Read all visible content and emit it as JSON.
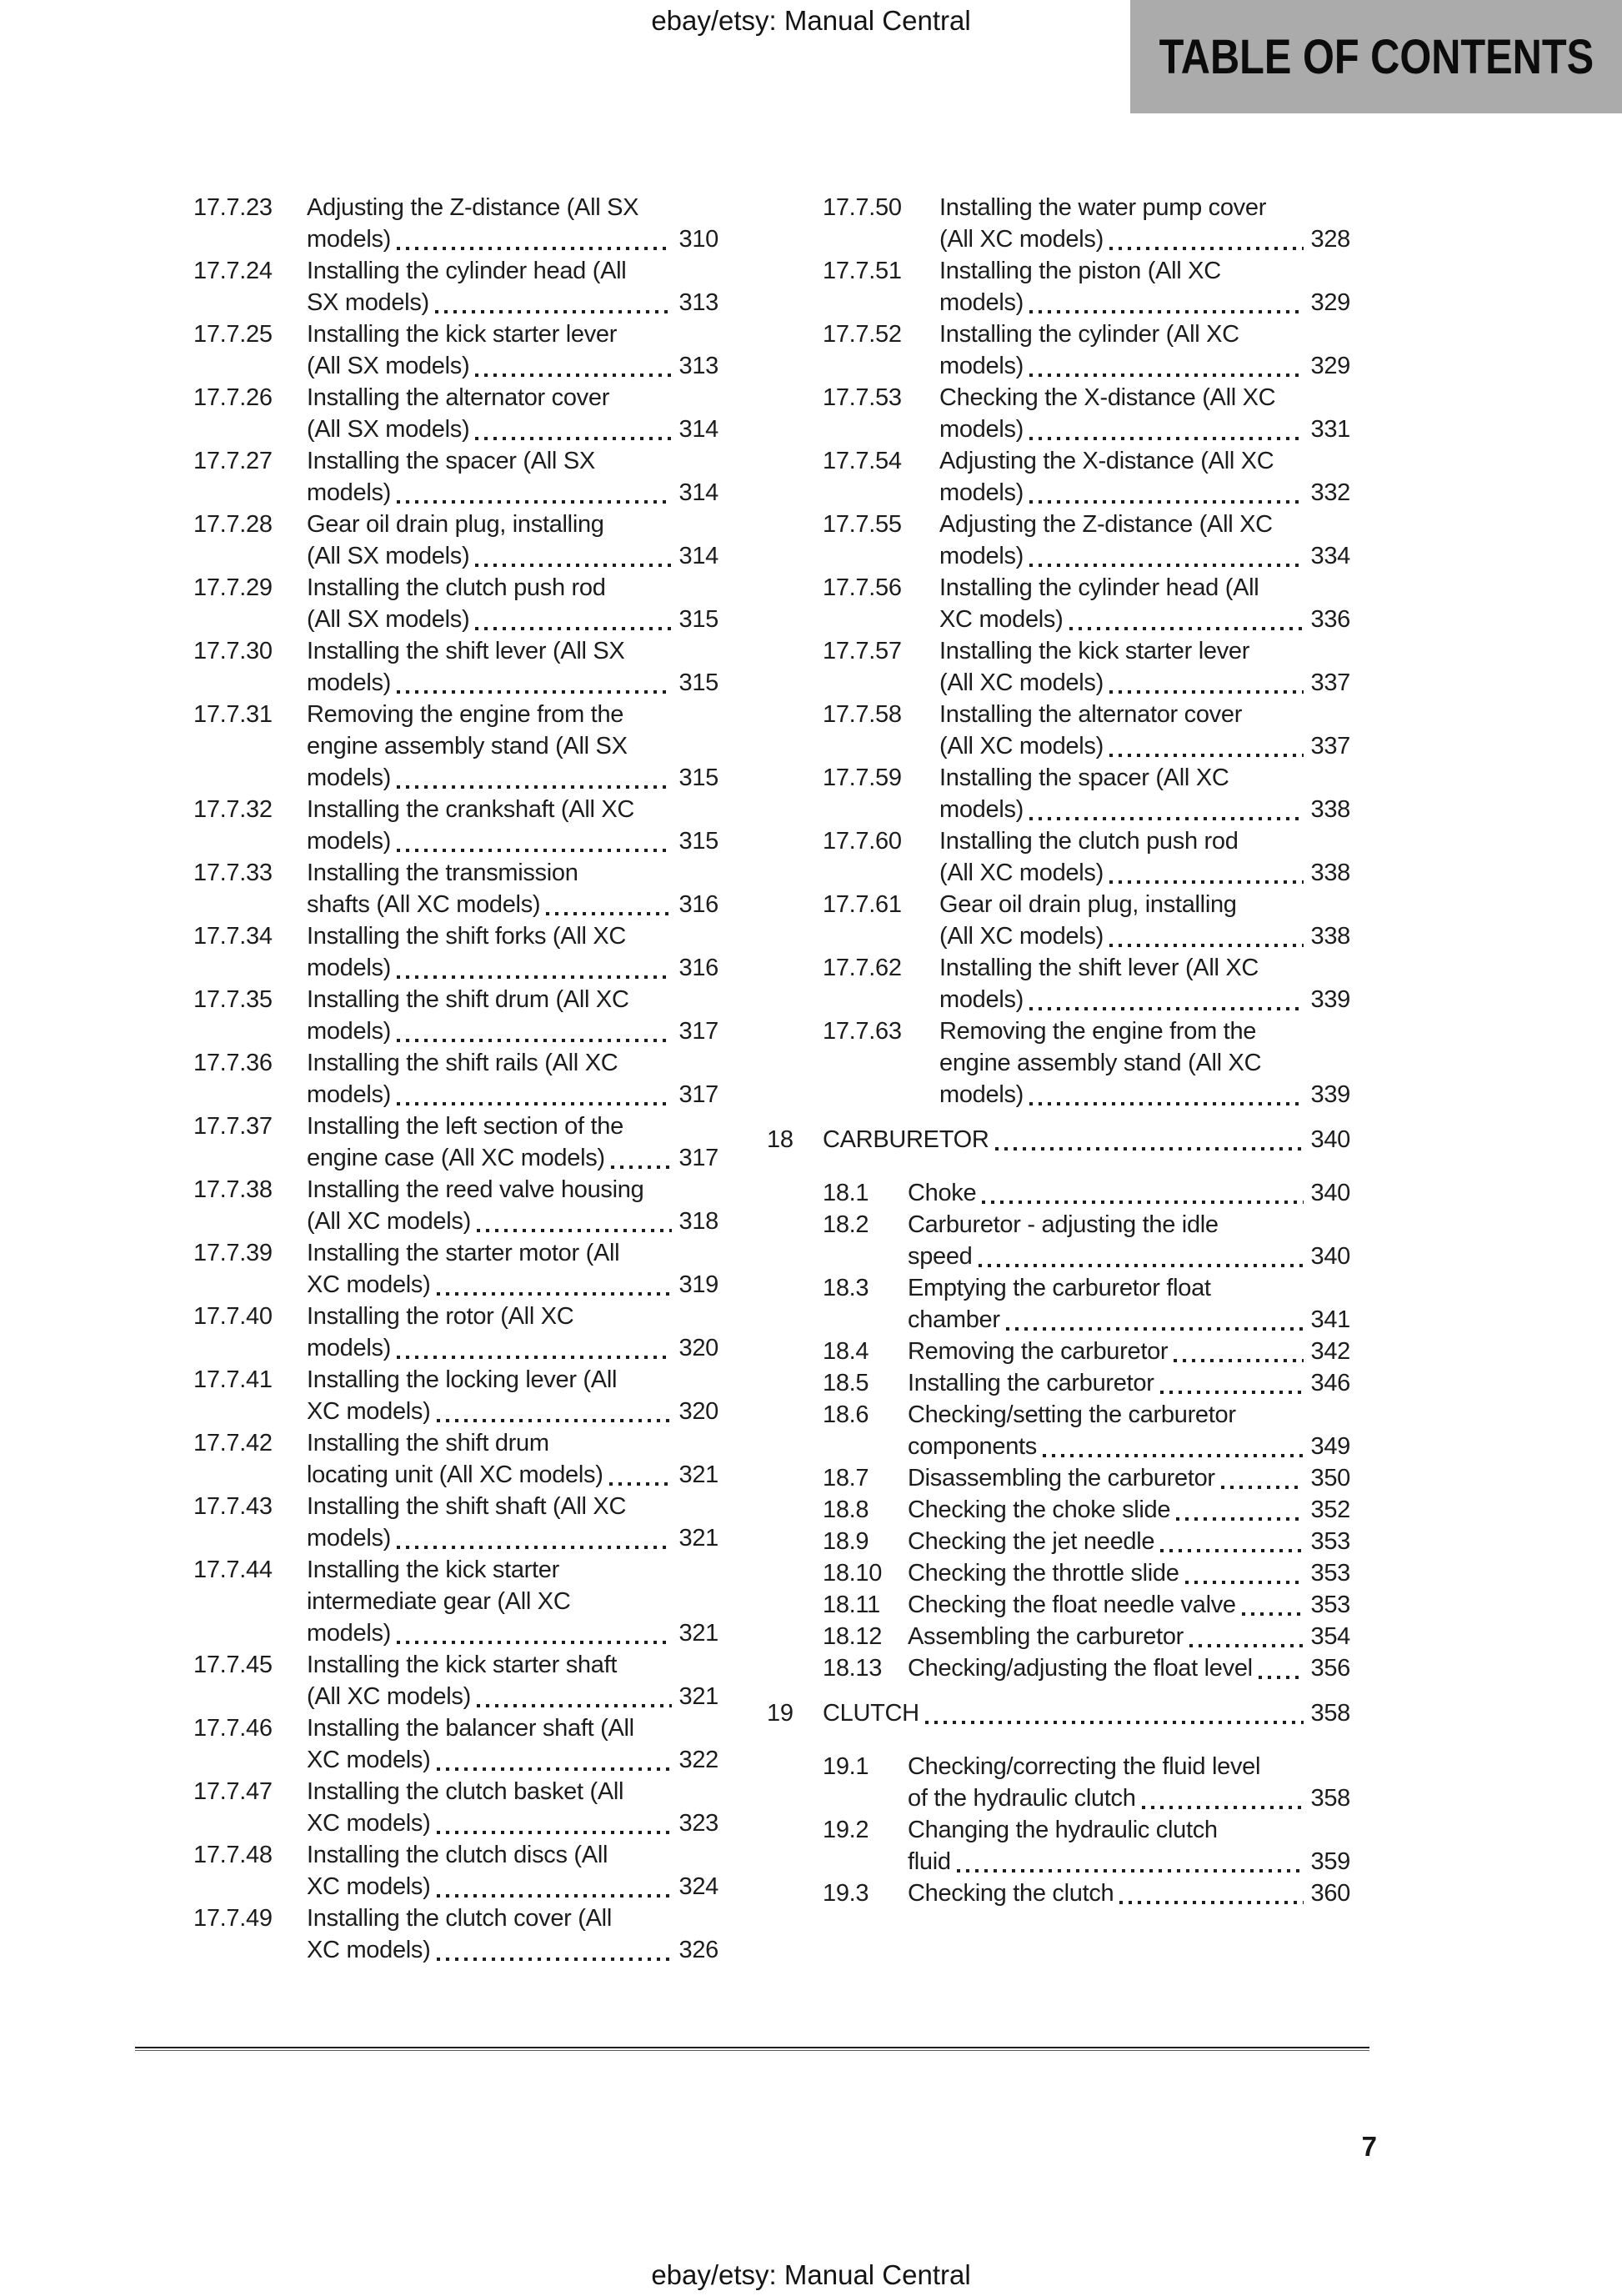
{
  "page": {
    "header_watermark": "ebay/etsy: Manual Central",
    "footer_watermark": "ebay/etsy: Manual Central",
    "title": "TABLE OF CONTENTS",
    "page_number": "7",
    "colors": {
      "title_box_bg": "#ababab",
      "text": "#1c1c1c",
      "leader_dots": "#1e1e1e"
    }
  },
  "toc": {
    "left_column": [
      {
        "num": "17.7.23",
        "lines": [
          "Adjusting the Z-distance (All SX",
          "models)"
        ],
        "page": "310"
      },
      {
        "num": "17.7.24",
        "lines": [
          "Installing the cylinder head (All",
          "SX models)"
        ],
        "page": "313"
      },
      {
        "num": "17.7.25",
        "lines": [
          "Installing the kick starter lever",
          "(All SX models)"
        ],
        "page": "313"
      },
      {
        "num": "17.7.26",
        "lines": [
          "Installing the alternator cover",
          "(All SX models)"
        ],
        "page": "314"
      },
      {
        "num": "17.7.27",
        "lines": [
          "Installing the spacer (All SX",
          "models)"
        ],
        "page": "314"
      },
      {
        "num": "17.7.28",
        "lines": [
          "Gear oil drain plug, installing",
          "(All SX models)"
        ],
        "page": "314"
      },
      {
        "num": "17.7.29",
        "lines": [
          "Installing the clutch push rod",
          "(All SX models)"
        ],
        "page": "315"
      },
      {
        "num": "17.7.30",
        "lines": [
          "Installing the shift lever (All SX",
          "models)"
        ],
        "page": "315"
      },
      {
        "num": "17.7.31",
        "lines": [
          "Removing the engine from the",
          "engine assembly stand (All SX",
          "models)"
        ],
        "page": "315"
      },
      {
        "num": "17.7.32",
        "lines": [
          "Installing the crankshaft (All XC",
          "models)"
        ],
        "page": "315"
      },
      {
        "num": "17.7.33",
        "lines": [
          "Installing the transmission",
          "shafts (All XC models)"
        ],
        "page": "316"
      },
      {
        "num": "17.7.34",
        "lines": [
          "Installing the shift forks (All XC",
          "models)"
        ],
        "page": "316"
      },
      {
        "num": "17.7.35",
        "lines": [
          "Installing the shift drum (All XC",
          "models)"
        ],
        "page": "317"
      },
      {
        "num": "17.7.36",
        "lines": [
          "Installing the shift rails (All XC",
          "models)"
        ],
        "page": "317"
      },
      {
        "num": "17.7.37",
        "lines": [
          "Installing the left section of the",
          "engine case (All XC models)"
        ],
        "page": "317"
      },
      {
        "num": "17.7.38",
        "lines": [
          "Installing the reed valve housing",
          "(All XC models)"
        ],
        "page": "318"
      },
      {
        "num": "17.7.39",
        "lines": [
          "Installing the starter motor (All",
          "XC models)"
        ],
        "page": "319"
      },
      {
        "num": "17.7.40",
        "lines": [
          "Installing the rotor (All XC",
          "models)"
        ],
        "page": "320"
      },
      {
        "num": "17.7.41",
        "lines": [
          "Installing the locking lever (All",
          "XC models)"
        ],
        "page": "320"
      },
      {
        "num": "17.7.42",
        "lines": [
          "Installing the shift drum",
          "locating unit (All XC models)"
        ],
        "page": "321"
      },
      {
        "num": "17.7.43",
        "lines": [
          "Installing the shift shaft (All XC",
          "models)"
        ],
        "page": "321"
      },
      {
        "num": "17.7.44",
        "lines": [
          "Installing the kick starter",
          "intermediate gear (All XC",
          "models)"
        ],
        "page": "321"
      },
      {
        "num": "17.7.45",
        "lines": [
          "Installing the kick starter shaft",
          "(All XC models)"
        ],
        "page": "321"
      },
      {
        "num": "17.7.46",
        "lines": [
          "Installing the balancer shaft (All",
          "XC models)"
        ],
        "page": "322"
      },
      {
        "num": "17.7.47",
        "lines": [
          "Installing the clutch basket (All",
          "XC models)"
        ],
        "page": "323"
      },
      {
        "num": "17.7.48",
        "lines": [
          "Installing the clutch discs (All",
          "XC models)"
        ],
        "page": "324"
      },
      {
        "num": "17.7.49",
        "lines": [
          "Installing the clutch cover (All",
          "XC models)"
        ],
        "page": "326"
      }
    ],
    "right_column": [
      {
        "num": "17.7.50",
        "lines": [
          "Installing the water pump cover",
          "(All XC models)"
        ],
        "page": "328"
      },
      {
        "num": "17.7.51",
        "lines": [
          "Installing the piston (All XC",
          "models)"
        ],
        "page": "329"
      },
      {
        "num": "17.7.52",
        "lines": [
          "Installing the cylinder (All XC",
          "models)"
        ],
        "page": "329"
      },
      {
        "num": "17.7.53",
        "lines": [
          "Checking the X-distance (All XC",
          "models)"
        ],
        "page": "331"
      },
      {
        "num": "17.7.54",
        "lines": [
          "Adjusting the X-distance (All XC",
          "models)"
        ],
        "page": "332"
      },
      {
        "num": "17.7.55",
        "lines": [
          "Adjusting the Z-distance (All XC",
          "models)"
        ],
        "page": "334"
      },
      {
        "num": "17.7.56",
        "lines": [
          "Installing the cylinder head (All",
          "XC models)"
        ],
        "page": "336"
      },
      {
        "num": "17.7.57",
        "lines": [
          "Installing the kick starter lever",
          "(All XC models)"
        ],
        "page": "337"
      },
      {
        "num": "17.7.58",
        "lines": [
          "Installing the alternator cover",
          "(All XC models)"
        ],
        "page": "337"
      },
      {
        "num": "17.7.59",
        "lines": [
          "Installing the spacer (All XC",
          "models)"
        ],
        "page": "338"
      },
      {
        "num": "17.7.60",
        "lines": [
          "Installing the clutch push rod",
          "(All XC models)"
        ],
        "page": "338"
      },
      {
        "num": "17.7.61",
        "lines": [
          "Gear oil drain plug, installing",
          "(All XC models)"
        ],
        "page": "338"
      },
      {
        "num": "17.7.62",
        "lines": [
          "Installing the shift lever (All XC",
          "models)"
        ],
        "page": "339"
      },
      {
        "num": "17.7.63",
        "lines": [
          "Removing the engine from the",
          "engine assembly stand (All XC",
          "models)"
        ],
        "page": "339"
      },
      {
        "type": "section",
        "num": "18",
        "title": "CARBURETOR",
        "page": "340"
      },
      {
        "num": "18.1",
        "lines": [
          "Choke"
        ],
        "page": "340"
      },
      {
        "num": "18.2",
        "lines": [
          "Carburetor - adjusting the idle",
          "speed"
        ],
        "page": "340"
      },
      {
        "num": "18.3",
        "lines": [
          "Emptying the carburetor float",
          "chamber"
        ],
        "page": "341"
      },
      {
        "num": "18.4",
        "lines": [
          "Removing the carburetor"
        ],
        "page": "342"
      },
      {
        "num": "18.5",
        "lines": [
          "Installing the carburetor"
        ],
        "page": "346"
      },
      {
        "num": "18.6",
        "lines": [
          "Checking/setting the carburetor",
          "components"
        ],
        "page": "349"
      },
      {
        "num": "18.7",
        "lines": [
          "Disassembling the carburetor"
        ],
        "page": "350"
      },
      {
        "num": "18.8",
        "lines": [
          "Checking the choke slide"
        ],
        "page": "352"
      },
      {
        "num": "18.9",
        "lines": [
          "Checking the jet needle"
        ],
        "page": "353"
      },
      {
        "num": "18.10",
        "lines": [
          "Checking the throttle slide"
        ],
        "page": "353"
      },
      {
        "num": "18.11",
        "lines": [
          "Checking the float needle valve"
        ],
        "page": "353"
      },
      {
        "num": "18.12",
        "lines": [
          "Assembling the carburetor"
        ],
        "page": "354"
      },
      {
        "num": "18.13",
        "lines": [
          "Checking/adjusting the float level"
        ],
        "page": "356"
      },
      {
        "type": "section",
        "num": "19",
        "title": "CLUTCH",
        "page": "358"
      },
      {
        "num": "19.1",
        "lines": [
          "Checking/correcting the fluid level",
          "of the hydraulic clutch"
        ],
        "page": "358"
      },
      {
        "num": "19.2",
        "lines": [
          "Changing the hydraulic clutch",
          "fluid"
        ],
        "page": "359"
      },
      {
        "num": "19.3",
        "lines": [
          "Checking the clutch"
        ],
        "page": "360"
      }
    ]
  }
}
